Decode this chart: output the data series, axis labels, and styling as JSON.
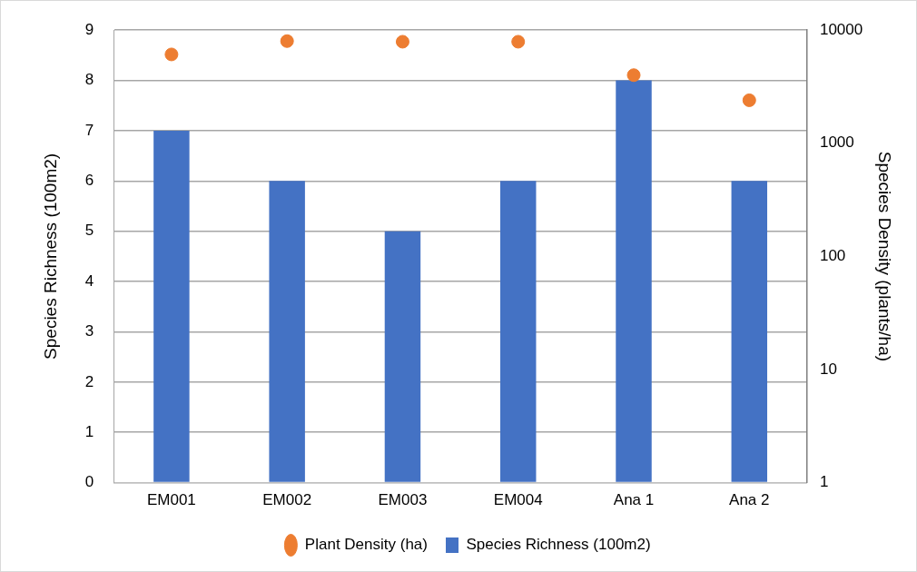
{
  "chart_data": {
    "type": "bar",
    "categories": [
      "EM001",
      "EM002",
      "EM003",
      "EM004",
      "Ana 1",
      "Ana 2"
    ],
    "ylabel": "Species Richness (100m2)",
    "y2label": "Species Density (plants/ha)",
    "ylim": [
      0,
      9
    ],
    "yticks": [
      0,
      1,
      2,
      3,
      4,
      5,
      6,
      7,
      8,
      9
    ],
    "y2lim": [
      1,
      10000
    ],
    "y2ticks": [
      1,
      10,
      100,
      1000,
      10000
    ],
    "log": "y2",
    "grid": "y",
    "legend": "bottom",
    "marker": "circle",
    "series": [
      {
        "name": "Species Richness (100m2)",
        "color": "#4472c4",
        "values": [
          7,
          6,
          5,
          6,
          8,
          6
        ]
      },
      {
        "name": "Plant Density (ha)",
        "type": "scatter",
        "axis": "y2",
        "color": "#ed7d31",
        "x": [
          "EM001",
          "EM002",
          "EM003",
          "EM004",
          "Ana 1",
          "Ana 2"
        ],
        "values": [
          6100,
          8000,
          7900,
          7900,
          4000,
          2400
        ]
      }
    ]
  }
}
